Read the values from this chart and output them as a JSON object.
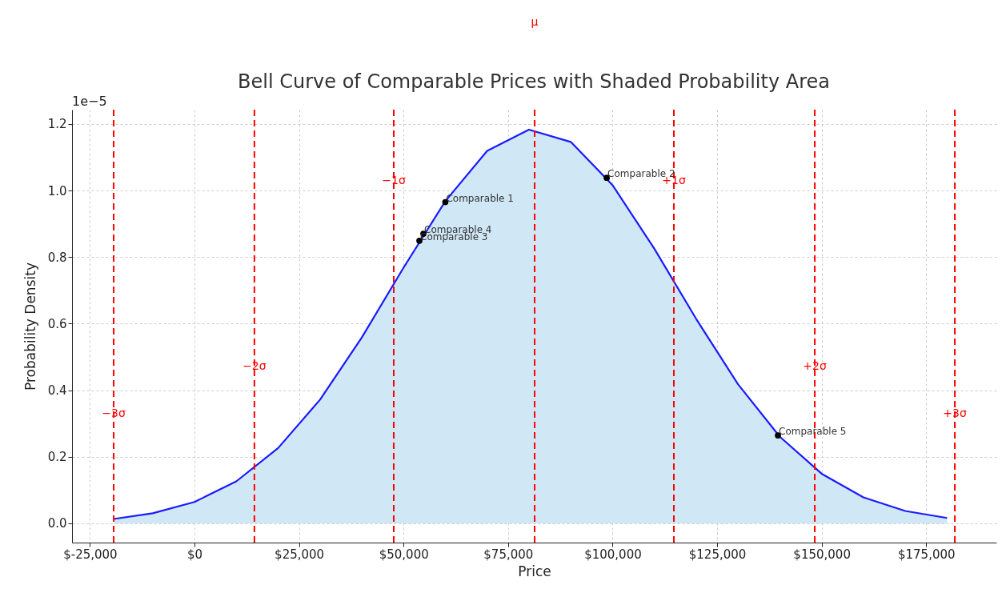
{
  "chart_data": {
    "type": "area",
    "title": "Bell Curve of Comparable Prices with Shaded Probability Area",
    "xlabel": "Price",
    "ylabel": "Probability Density",
    "x": [
      -19330,
      -10000,
      0,
      10000,
      20000,
      30000,
      40000,
      50000,
      60000,
      70000,
      80000,
      90000,
      100000,
      110000,
      120000,
      130000,
      140000,
      150000,
      160000,
      170000,
      180000
    ],
    "series": [
      {
        "color": "#1a1aff",
        "values": [
          0.013,
          0.03,
          0.064,
          0.126,
          0.226,
          0.371,
          0.558,
          0.768,
          0.968,
          1.119,
          1.183,
          1.146,
          1.016,
          0.825,
          0.614,
          0.418,
          0.26,
          0.149,
          0.078,
          0.037,
          0.016
        ]
      },
      {
        "type": "scatter",
        "color": "#000000",
        "marker": "circle",
        "x": [
          60000,
          98600,
          53790,
          54750,
          139550
        ],
        "values": [
          0.965,
          1.038,
          0.849,
          0.87,
          0.264
        ]
      }
    ],
    "annotations": [
      {
        "text": "Comparable 1",
        "x": 60000,
        "y": 0.965
      },
      {
        "text": "Comparable 2",
        "x": 98600,
        "y": 1.038
      },
      {
        "text": "Comparable 3",
        "x": 53790,
        "y": 0.849
      },
      {
        "text": "Comparable 4",
        "x": 54750,
        "y": 0.87
      },
      {
        "text": "Comparable 5",
        "x": 139550,
        "y": 0.264
      },
      "1e−5"
    ],
    "ref_lines": [
      {
        "axis": "x",
        "value": -19330,
        "label": "−3σ",
        "color": "#ff0000",
        "line_style": "dashed"
      },
      {
        "axis": "x",
        "value": 14330,
        "label": "−2σ",
        "color": "#ff0000",
        "line_style": "dashed"
      },
      {
        "axis": "x",
        "value": 47660,
        "label": "−1σ",
        "color": "#ff0000",
        "line_style": "dashed"
      },
      {
        "axis": "x",
        "value": 81360,
        "label": "μ",
        "color": "#ff0000",
        "line_style": "dashed"
      },
      {
        "axis": "x",
        "value": 114660,
        "label": "+1σ",
        "color": "#ff0000",
        "line_style": "dashed"
      },
      {
        "axis": "x",
        "value": 148360,
        "label": "+2σ",
        "color": "#ff0000",
        "line_style": "dashed"
      },
      {
        "axis": "x",
        "value": 181860,
        "label": "+3σ",
        "color": "#ff0000",
        "line_style": "dashed"
      }
    ],
    "xlim": [
      -29290,
      191800
    ],
    "ylim": [
      -0.058,
      1.243
    ],
    "xticks": [
      {
        "value": -25000,
        "label": "$-25,000"
      },
      {
        "value": 0,
        "label": "$0"
      },
      {
        "value": 25000,
        "label": "$25,000"
      },
      {
        "value": 50000,
        "label": "$50,000"
      },
      {
        "value": 75000,
        "label": "$75,000"
      },
      {
        "value": 100000,
        "label": "$100,000"
      },
      {
        "value": 125000,
        "label": "$125,000"
      },
      {
        "value": 150000,
        "label": "$150,000"
      },
      {
        "value": 175000,
        "label": "$175,000"
      }
    ],
    "yticks": [
      {
        "value": 0,
        "label": "0.0"
      },
      0.2,
      0.4,
      0.6,
      0.8,
      {
        "value": 1,
        "label": "1.0"
      },
      1.2
    ],
    "grid": true
  }
}
